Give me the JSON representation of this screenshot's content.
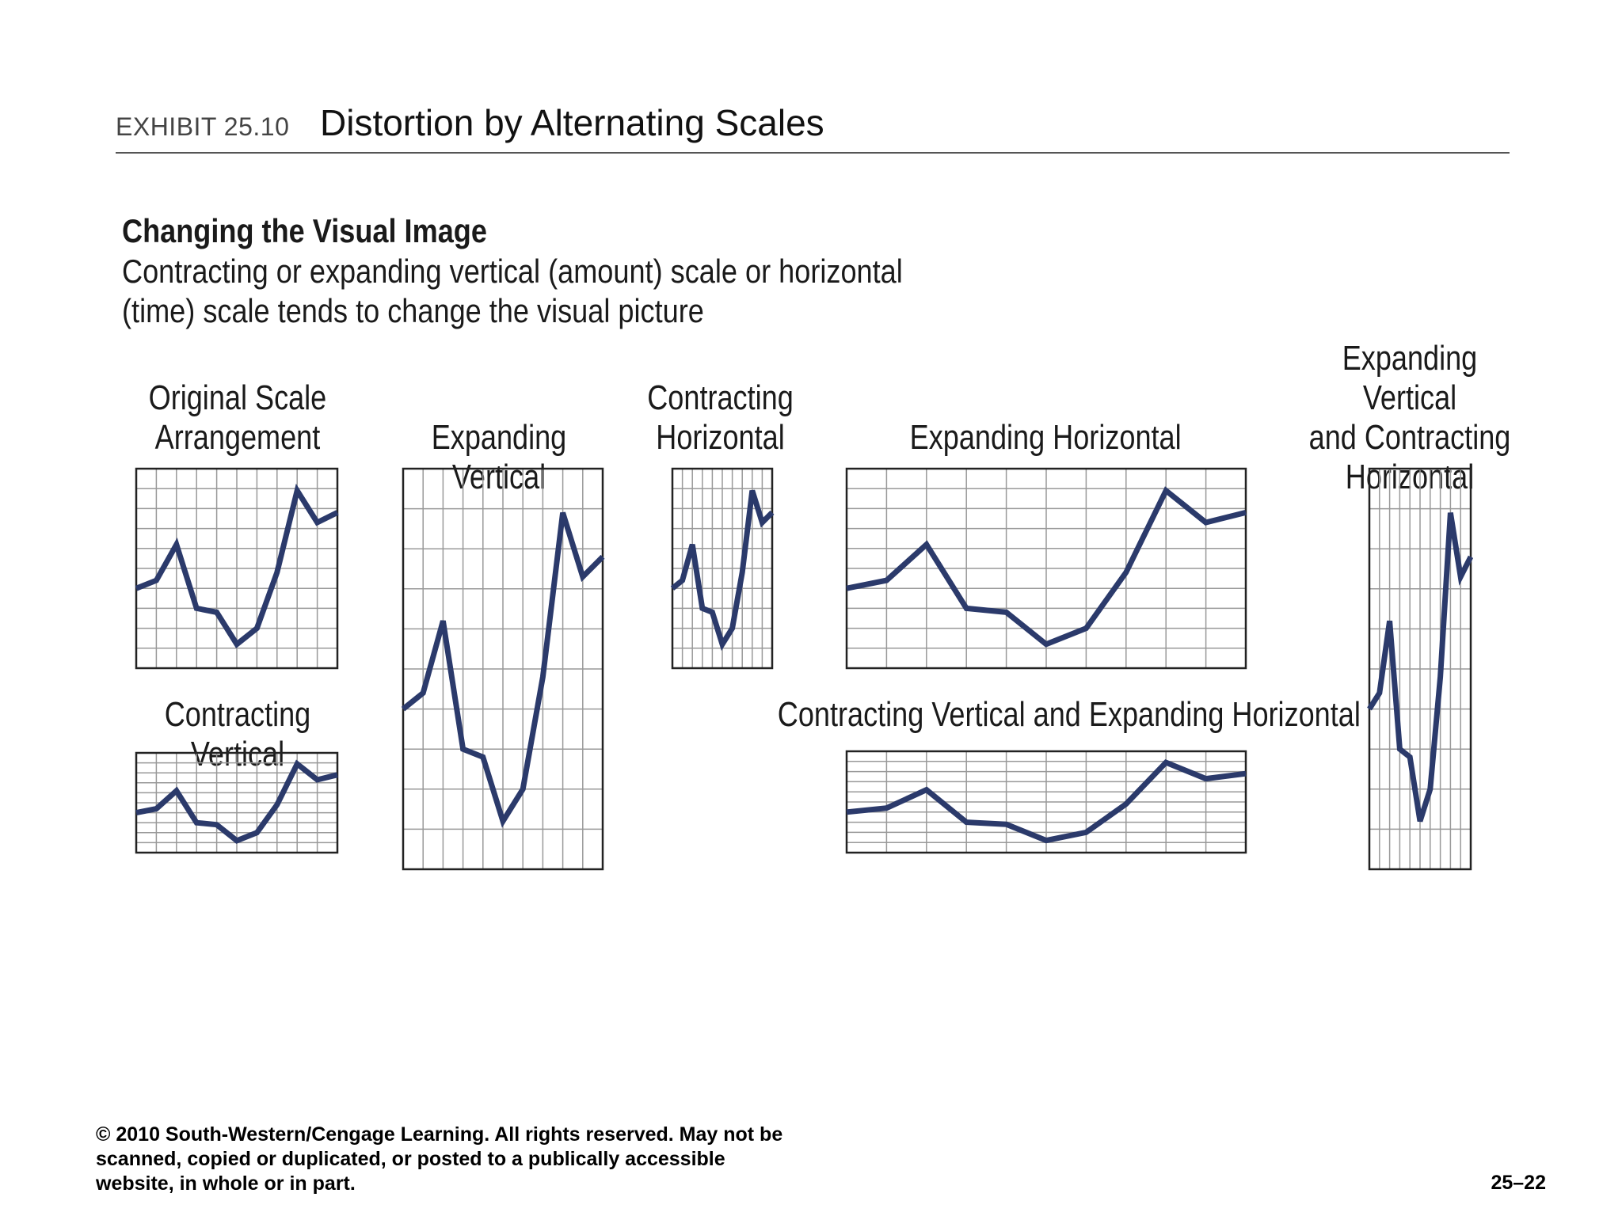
{
  "header": {
    "exhibit": "EXHIBIT 25.10",
    "title": "Distortion by Alternating Scales"
  },
  "intro": {
    "heading": "Changing the Visual Image",
    "line1": "Contracting or expanding vertical (amount) scale or horizontal",
    "line2": "(time) scale tends to change the visual picture"
  },
  "chart_data": {
    "type": "line",
    "title": "Distortion by Alternating Scales",
    "x": [
      0,
      1,
      2,
      3,
      4,
      5,
      6,
      7,
      8,
      9,
      10
    ],
    "values": [
      4,
      4.4,
      6.2,
      3,
      2.8,
      1.2,
      2,
      4.8,
      8.9,
      7.3,
      7.8
    ],
    "ylim": [
      0,
      10
    ],
    "color": "#2b3a6b",
    "panels": [
      {
        "id": "original",
        "label": "Original Scale\nArrangement"
      },
      {
        "id": "expanding-vertical",
        "label": "Expanding Vertical"
      },
      {
        "id": "contracting-horizontal",
        "label": "Contracting\nHorizontal"
      },
      {
        "id": "expanding-horizontal",
        "label": "Expanding Horizontal"
      },
      {
        "id": "expanding-vertical-contracting-horizontal",
        "label": "Expanding Vertical\nand Contracting\nHorizontal"
      },
      {
        "id": "contracting-vertical",
        "label": "Contracting Vertical"
      },
      {
        "id": "contracting-vertical-expanding-horizontal",
        "label": "Contracting Vertical and Expanding Horizontal"
      }
    ]
  },
  "footer": {
    "copyright": "© 2010 South-Western/Cengage Learning. All rights reserved.  May not be\nscanned, copied or duplicated, or posted to a publically accessible\nwebsite, in whole or in part.",
    "page_number": "25–22"
  }
}
